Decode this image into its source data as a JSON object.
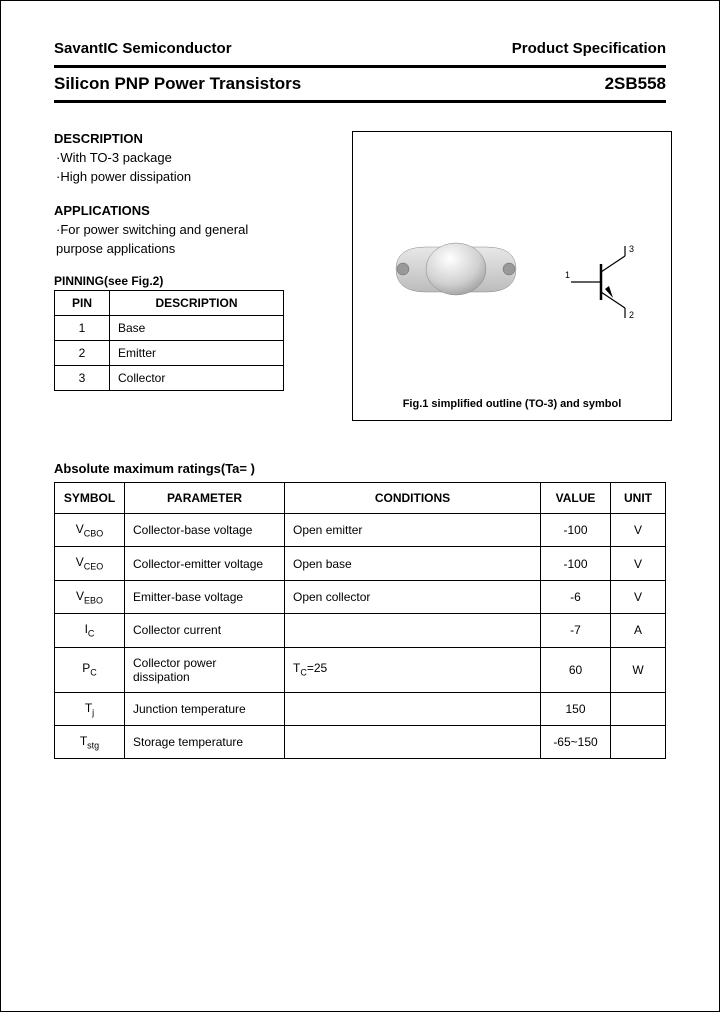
{
  "header": {
    "company": "SavantIC Semiconductor",
    "doc_type": "Product Specification"
  },
  "title": {
    "product_family": "Silicon PNP Power Transistors",
    "part_number": "2SB558"
  },
  "description": {
    "heading": "DESCRIPTION",
    "line1": "·With TO-3 package",
    "line2": "·High power dissipation"
  },
  "applications": {
    "heading": "APPLICATIONS",
    "line1": "·For power switching and general",
    "line2": "  purpose applications"
  },
  "pinning": {
    "heading": "PINNING(see Fig.2)",
    "col_pin": "PIN",
    "col_desc": "DESCRIPTION",
    "rows": [
      {
        "pin": "1",
        "desc": "Base"
      },
      {
        "pin": "2",
        "desc": "Emitter"
      },
      {
        "pin": "3",
        "desc": "Collector"
      }
    ]
  },
  "figure": {
    "caption": "Fig.1 simplified outline (TO-3) and symbol",
    "pin_labels": {
      "p1": "1",
      "p2": "2",
      "p3": "3"
    }
  },
  "ratings": {
    "heading": "Absolute maximum ratings(Ta=  )",
    "columns": {
      "symbol": "SYMBOL",
      "parameter": "PARAMETER",
      "conditions": "CONDITIONS",
      "value": "VALUE",
      "unit": "UNIT"
    },
    "rows": [
      {
        "sym": "V",
        "sub": "CBO",
        "param": "Collector-base voltage",
        "cond": "Open emitter",
        "val": "-100",
        "unit": "V"
      },
      {
        "sym": "V",
        "sub": "CEO",
        "param": "Collector-emitter voltage",
        "cond": "Open base",
        "val": "-100",
        "unit": "V"
      },
      {
        "sym": "V",
        "sub": "EBO",
        "param": "Emitter-base voltage",
        "cond": "Open collector",
        "val": "-6",
        "unit": "V"
      },
      {
        "sym": "I",
        "sub": "C",
        "param": "Collector current",
        "cond": "",
        "val": "-7",
        "unit": "A"
      },
      {
        "sym": "P",
        "sub": "C",
        "param": "Collector power dissipation",
        "cond": "TC=25",
        "val": "60",
        "unit": "W"
      },
      {
        "sym": "T",
        "sub": "j",
        "param": "Junction temperature",
        "cond": "",
        "val": "150",
        "unit": ""
      },
      {
        "sym": "T",
        "sub": "stg",
        "param": "Storage temperature",
        "cond": "",
        "val": "-65~150",
        "unit": ""
      }
    ]
  },
  "style": {
    "text_color": "#000000",
    "border_color": "#000000",
    "background": "#ffffff"
  }
}
